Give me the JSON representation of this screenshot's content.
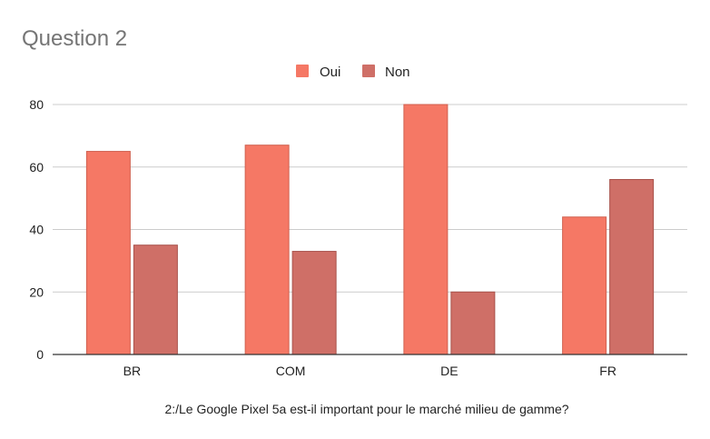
{
  "chart_data": {
    "type": "bar",
    "title": "Question 2",
    "xlabel": "2:/Le Google Pixel 5a est-il important pour le marché milieu de gamme?",
    "ylabel": "",
    "categories": [
      "BR",
      "COM",
      "DE",
      "FR"
    ],
    "series": [
      {
        "name": "Oui",
        "color": "#f57865",
        "stroke": "#d0604f",
        "values": [
          65,
          67,
          80,
          44
        ]
      },
      {
        "name": "Non",
        "color": "#cf6f67",
        "stroke": "#a8524b",
        "values": [
          35,
          33,
          20,
          56
        ]
      }
    ],
    "ylim": [
      0,
      80
    ],
    "yticks": [
      0,
      20,
      40,
      60,
      80
    ],
    "grid": true,
    "legend": "top-center"
  }
}
